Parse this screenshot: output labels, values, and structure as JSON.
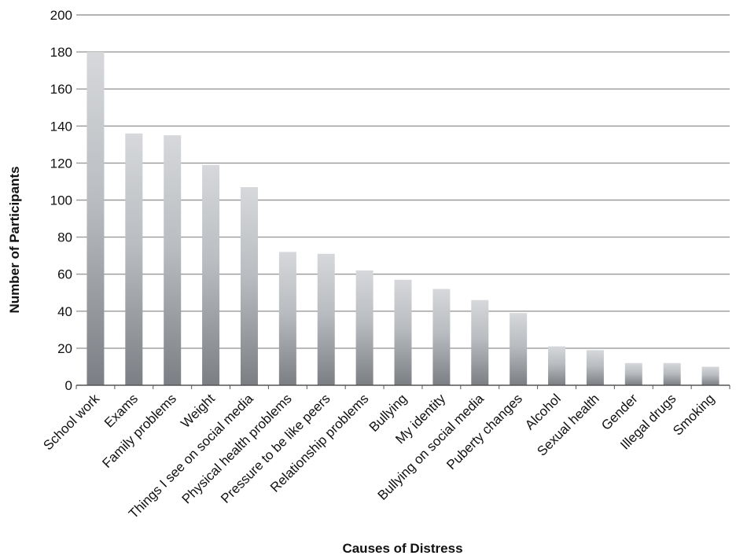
{
  "chart_data": {
    "type": "bar",
    "title": "",
    "xlabel": "Causes of Distress",
    "ylabel": "Number of Participants",
    "ylim": [
      0,
      200
    ],
    "yticks": [
      0,
      20,
      40,
      60,
      80,
      100,
      120,
      140,
      160,
      180,
      200
    ],
    "grid": true,
    "legend": "none",
    "bar_color_top": "#d6d8db",
    "bar_color_bottom": "#7b7f84",
    "grid_color": "#9a9a9a",
    "categories": [
      "School work",
      "Exams",
      "Family problems",
      "Weight",
      "Things I see on social media",
      "Physical health problems",
      "Pressure to be like peers",
      "Relationship problems",
      "Bullying",
      "My identity",
      "Bullying on social media",
      "Puberty changes",
      "Alcohol",
      "Sexual health",
      "Gender",
      "Illegal drugs",
      "Smoking"
    ],
    "values": [
      180,
      136,
      135,
      119,
      107,
      72,
      71,
      62,
      57,
      52,
      46,
      39,
      21,
      19,
      12,
      12,
      10
    ]
  }
}
